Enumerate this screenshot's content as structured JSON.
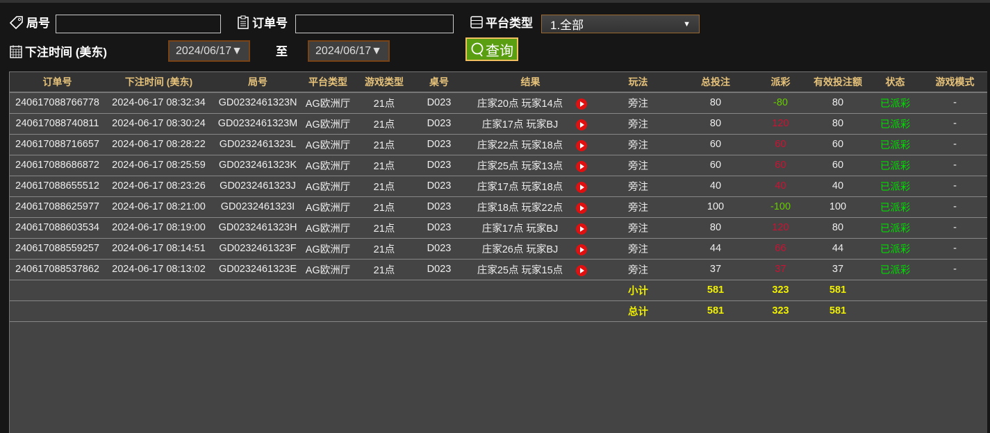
{
  "filters": {
    "round_label": "局号",
    "round_value": "",
    "order_label": "订单号",
    "order_value": "",
    "platform_label": "平台类型",
    "platform_value": "1.全部",
    "time_label": "下注时间 (美东)",
    "date_from": "2024/06/17▼",
    "to_label": "至",
    "date_to": "2024/06/17▼",
    "query_label": "查询"
  },
  "table": {
    "headers": [
      "订单号",
      "下注时间 (美东)",
      "局号",
      "平台类型",
      "游戏类型",
      "桌号",
      "结果",
      "玩法",
      "总投注",
      "派彩",
      "有效投注额",
      "状态",
      "游戏模式"
    ],
    "rows": [
      [
        "240617088766778",
        "2024-06-17 08:32:34",
        "GD0232461323N",
        "AG欧洲厅",
        "21点",
        "D023",
        "庄家20点 玩家14点",
        "旁注",
        "80",
        "-80",
        "80",
        "已派彩",
        "-"
      ],
      [
        "240617088740811",
        "2024-06-17 08:30:24",
        "GD0232461323M",
        "AG欧洲厅",
        "21点",
        "D023",
        "庄家17点 玩家BJ",
        "旁注",
        "80",
        "120",
        "80",
        "已派彩",
        "-"
      ],
      [
        "240617088716657",
        "2024-06-17 08:28:22",
        "GD0232461323L",
        "AG欧洲厅",
        "21点",
        "D023",
        "庄家22点 玩家18点",
        "旁注",
        "60",
        "60",
        "60",
        "已派彩",
        "-"
      ],
      [
        "240617088686872",
        "2024-06-17 08:25:59",
        "GD0232461323K",
        "AG欧洲厅",
        "21点",
        "D023",
        "庄家25点 玩家13点",
        "旁注",
        "60",
        "60",
        "60",
        "已派彩",
        "-"
      ],
      [
        "240617088655512",
        "2024-06-17 08:23:26",
        "GD0232461323J",
        "AG欧洲厅",
        "21点",
        "D023",
        "庄家17点 玩家18点",
        "旁注",
        "40",
        "40",
        "40",
        "已派彩",
        "-"
      ],
      [
        "240617088625977",
        "2024-06-17 08:21:00",
        "GD0232461323I",
        "AG欧洲厅",
        "21点",
        "D023",
        "庄家18点 玩家22点",
        "旁注",
        "100",
        "-100",
        "100",
        "已派彩",
        "-"
      ],
      [
        "240617088603534",
        "2024-06-17 08:19:00",
        "GD0232461323H",
        "AG欧洲厅",
        "21点",
        "D023",
        "庄家17点 玩家BJ",
        "旁注",
        "80",
        "120",
        "80",
        "已派彩",
        "-"
      ],
      [
        "240617088559257",
        "2024-06-17 08:14:51",
        "GD0232461323F",
        "AG欧洲厅",
        "21点",
        "D023",
        "庄家26点 玩家BJ",
        "旁注",
        "44",
        "66",
        "44",
        "已派彩",
        "-"
      ],
      [
        "240617088537862",
        "2024-06-17 08:13:02",
        "GD0232461323E",
        "AG欧洲厅",
        "21点",
        "D023",
        "庄家25点 玩家15点",
        "旁注",
        "37",
        "37",
        "37",
        "已派彩",
        "-"
      ]
    ],
    "subtotal": {
      "label": "小计",
      "bet": "581",
      "payout": "323",
      "valid": "581"
    },
    "total": {
      "label": "总计",
      "bet": "581",
      "payout": "323",
      "valid": "581"
    }
  },
  "colors": {
    "header_text": "#e6c27a",
    "payout_positive": "#cc1133",
    "payout_negative": "#66cc00",
    "status": "#00dd00",
    "summary": "#f0f000",
    "query_button": "#5a9e12"
  }
}
